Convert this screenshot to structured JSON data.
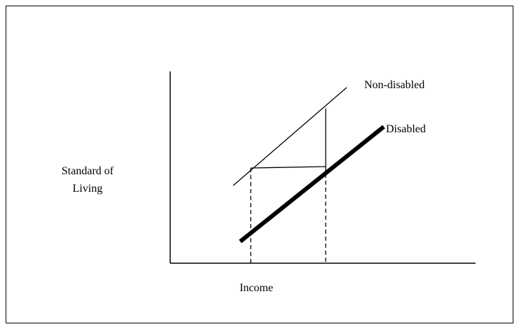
{
  "curves": {
    "upper": "Non-disabled",
    "lower": "Disabled"
  },
  "axes": {
    "y_label": [
      "Standard of",
      "Living"
    ],
    "x_label": "Income"
  }
}
